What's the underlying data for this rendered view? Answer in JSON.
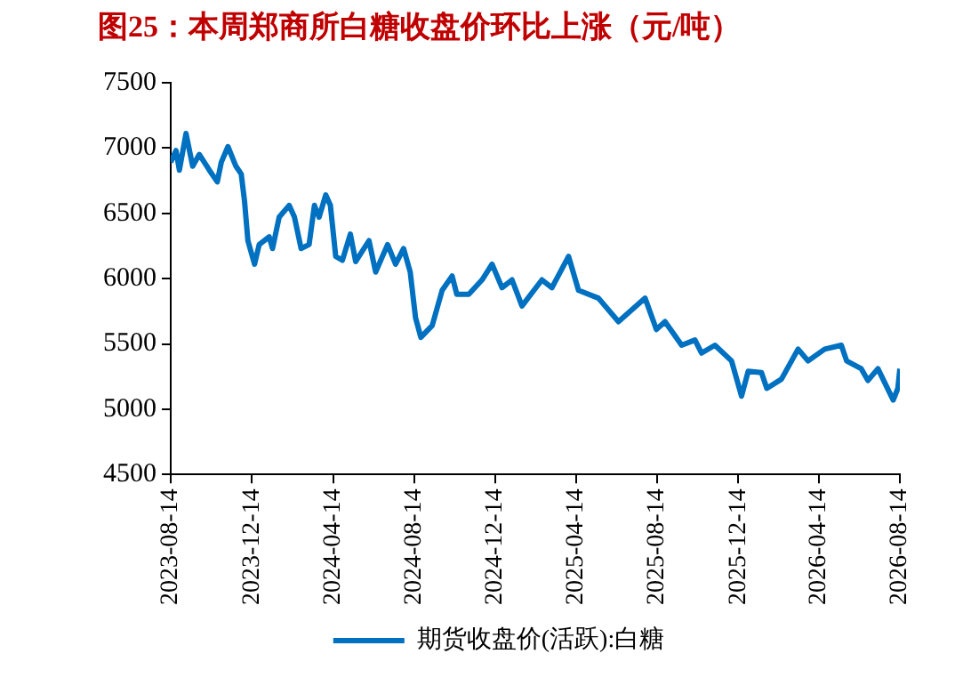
{
  "chart_data": {
    "type": "line",
    "title": "图25：本周郑商所白糖收盘价环比上涨（元/吨）",
    "x": [
      "2023-08-14",
      "2023-08-22",
      "2023-08-27",
      "2023-09-06",
      "2023-09-16",
      "2023-09-26",
      "2023-10-11",
      "2023-10-23",
      "2023-10-29",
      "2023-11-08",
      "2023-11-20",
      "2023-11-28",
      "2023-12-03",
      "2023-12-08",
      "2023-12-18",
      "2023-12-25",
      "2024-01-09",
      "2024-01-14",
      "2024-01-24",
      "2024-02-08",
      "2024-02-16",
      "2024-02-26",
      "2024-03-09",
      "2024-03-17",
      "2024-03-24",
      "2024-04-03",
      "2024-04-10",
      "2024-04-18",
      "2024-04-28",
      "2024-05-10",
      "2024-05-18",
      "2024-06-07",
      "2024-06-17",
      "2024-07-05",
      "2024-07-17",
      "2024-07-29",
      "2024-08-08",
      "2024-08-16",
      "2024-08-24",
      "2024-09-10",
      "2024-09-25",
      "2024-10-10",
      "2024-10-17",
      "2024-11-04",
      "2024-11-24",
      "2024-12-09",
      "2024-12-24",
      "2025-01-08",
      "2025-01-23",
      "2025-02-22",
      "2025-03-09",
      "2025-04-03",
      "2025-04-18",
      "2025-05-18",
      "2025-06-17",
      "2025-07-27",
      "2025-08-13",
      "2025-08-26",
      "2025-09-20",
      "2025-10-10",
      "2025-10-20",
      "2025-11-09",
      "2025-12-04",
      "2025-12-19",
      "2025-12-29",
      "2026-01-18",
      "2026-01-26",
      "2026-02-17",
      "2026-03-14",
      "2026-03-29",
      "2026-04-23",
      "2026-05-18",
      "2026-05-26",
      "2026-06-17",
      "2026-06-27",
      "2026-07-12",
      "2026-08-04",
      "2026-08-11",
      "2026-08-14"
    ],
    "series": [
      {
        "name": "期货收盘价(活跃):白糖",
        "color": "#0070c0",
        "values": [
          6890,
          6980,
          6830,
          7110,
          6860,
          6950,
          6830,
          6740,
          6890,
          7010,
          6860,
          6800,
          6590,
          6290,
          6110,
          6260,
          6320,
          6230,
          6470,
          6560,
          6470,
          6230,
          6260,
          6560,
          6470,
          6640,
          6560,
          6170,
          6140,
          6340,
          6130,
          6290,
          6050,
          6260,
          6110,
          6230,
          6050,
          5700,
          5550,
          5640,
          5910,
          6020,
          5880,
          5880,
          5990,
          6110,
          5930,
          5990,
          5790,
          5990,
          5930,
          6170,
          5910,
          5850,
          5670,
          5850,
          5610,
          5670,
          5490,
          5530,
          5430,
          5490,
          5370,
          5100,
          5290,
          5280,
          5160,
          5230,
          5460,
          5370,
          5460,
          5490,
          5370,
          5310,
          5220,
          5310,
          5070,
          5160,
          5310
        ]
      }
    ],
    "xlim": [
      "2023-08-14",
      "2026-08-14"
    ],
    "xticks": [
      "2023-08-14",
      "2023-12-14",
      "2024-04-14",
      "2024-08-14",
      "2024-12-14",
      "2025-04-14",
      "2025-08-14",
      "2025-12-14",
      "2026-04-14",
      "2026-08-14"
    ],
    "ylim": [
      4500,
      7500
    ],
    "yticks": [
      4500,
      5000,
      5500,
      6000,
      6500,
      7000,
      7500
    ],
    "grid": false,
    "legend": "bottom",
    "marker": "none",
    "line_style": "solid"
  }
}
